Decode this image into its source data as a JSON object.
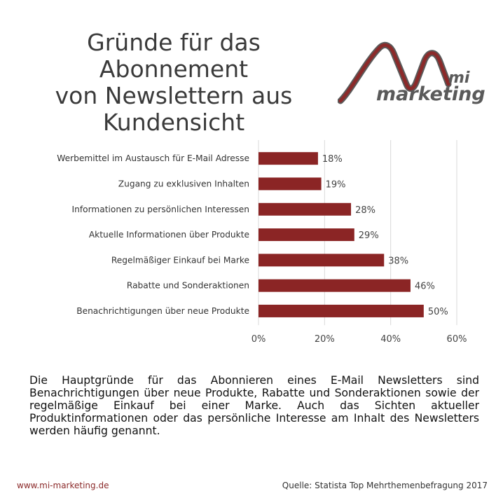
{
  "title_lines": [
    "Gründe für das Abonnement",
    "von Newslettern aus",
    "Kundensicht"
  ],
  "logo": {
    "mi_text": "mi",
    "brand_text": "marketing",
    "accent_color": "#8b2a2a",
    "gray_color": "#5a5a5a"
  },
  "chart_data": {
    "type": "bar",
    "orientation": "horizontal",
    "categories": [
      "Werbemittel im Austausch für E-Mail Adresse",
      "Zugang zu exklusiven Inhalten",
      "Informationen zu persönlichen Interessen",
      "Aktuelle Informationen über Produkte",
      "Regelmäßiger Einkauf bei Marke",
      "Rabatte und Sonderaktionen",
      "Benachrichtigungen über neue Produkte"
    ],
    "values": [
      18,
      19,
      28,
      29,
      38,
      46,
      50
    ],
    "value_labels": [
      "18%",
      "19%",
      "28%",
      "29%",
      "38%",
      "46%",
      "50%"
    ],
    "xlim": [
      0,
      60
    ],
    "x_ticks": [
      0,
      20,
      40,
      60
    ],
    "x_tick_labels": [
      "0%",
      "20%",
      "40%",
      "60%"
    ],
    "grid": true,
    "bar_color": "#8b2525",
    "title": "",
    "xlabel": "",
    "ylabel": ""
  },
  "description": "Die Hauptgründe für das Abonnieren eines E-Mail Newsletters sind Benachrichtigungen über neue Produkte, Rabatte und Sonderaktionen sowie der regelmäßige Einkauf bei einer Marke. Auch das Sichten aktueller Produktinformationen oder das persönliche Interesse am Inhalt des Newsletters werden häufig genannt.",
  "footer": {
    "url": "www.mi-marketing.de",
    "source": "Quelle: Statista Top Mehrthemenbefragung 2017"
  }
}
